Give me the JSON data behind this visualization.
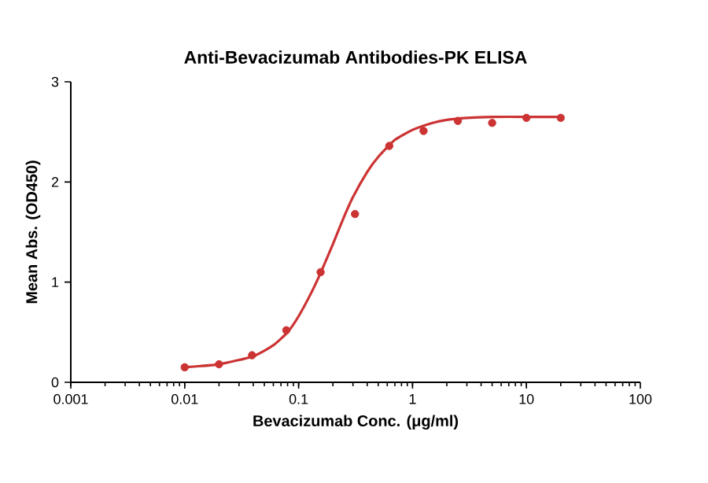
{
  "chart_data": {
    "type": "scatter",
    "title": "Anti-Bevacizumab Antibodies-PK ELISA",
    "xlabel": "Bevacizumab Conc. (μg/ml)",
    "ylabel": "Mean Abs. (OD450)",
    "log": "x",
    "xlim": [
      0.001,
      100
    ],
    "xticks": [
      0.001,
      0.01,
      0.1,
      1,
      10,
      100
    ],
    "ylim": [
      0,
      3
    ],
    "yticks": [
      0,
      1,
      2,
      3
    ],
    "series": [
      {
        "marker": "circle",
        "color": "#cc3333",
        "x": [
          0.01,
          0.02,
          0.039,
          0.078,
          0.156,
          0.3125,
          0.625,
          1.25,
          2.5,
          5,
          10,
          20
        ],
        "values": [
          0.15,
          0.18,
          0.27,
          0.52,
          1.1,
          1.68,
          2.36,
          2.51,
          2.61,
          2.59,
          2.64,
          2.64
        ]
      },
      {
        "type": "line",
        "marker": "none",
        "color": "#cc3333",
        "x": [
          0.01,
          0.02,
          0.04,
          0.06,
          0.08,
          0.1,
          0.13,
          0.16,
          0.2,
          0.25,
          0.3,
          0.4,
          0.5,
          0.7,
          1,
          1.5,
          2,
          3,
          5,
          10,
          20
        ],
        "values": [
          0.15,
          0.18,
          0.26,
          0.37,
          0.5,
          0.66,
          0.9,
          1.12,
          1.38,
          1.65,
          1.85,
          2.1,
          2.25,
          2.42,
          2.52,
          2.59,
          2.62,
          2.64,
          2.65,
          2.65,
          2.65
        ]
      }
    ]
  }
}
